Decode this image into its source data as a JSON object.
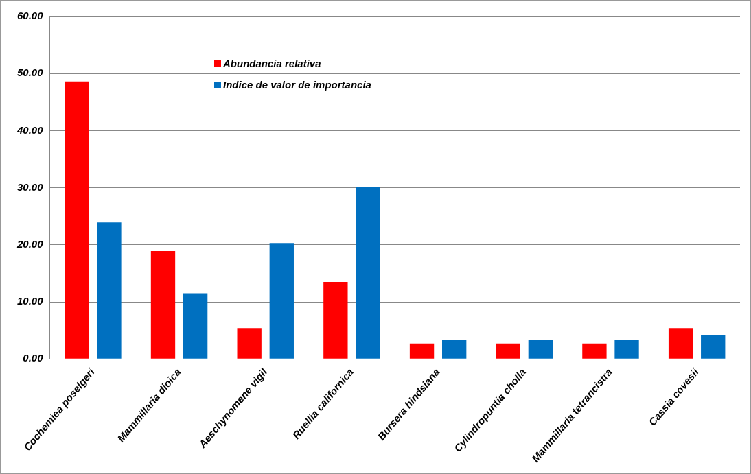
{
  "chart_data": {
    "type": "bar",
    "categories": [
      "Cochemiea poselgeri",
      "Mammillaria dioica",
      "Aeschynomene vigil",
      "Ruellia californica",
      "Bursera hindsiana",
      "Cylindropuntia cholla",
      "Mammillaria tetrancistra",
      "Cassia covesii"
    ],
    "series": [
      {
        "name": "Abundancia relativa",
        "color": "#ff0000",
        "values": [
          48.6,
          18.9,
          5.4,
          13.5,
          2.7,
          2.7,
          2.7,
          5.4
        ]
      },
      {
        "name": "Indice de valor de importancia",
        "color": "#0070c0",
        "values": [
          23.9,
          11.5,
          20.3,
          30.1,
          3.3,
          3.3,
          3.3,
          4.1
        ]
      }
    ],
    "ylim": [
      0,
      60
    ],
    "yticks": [
      {
        "value": 0,
        "label": "0.00"
      },
      {
        "value": 10,
        "label": "10.00"
      },
      {
        "value": 20,
        "label": "20.00"
      },
      {
        "value": 30,
        "label": "30.00"
      },
      {
        "value": 40,
        "label": "40.00"
      },
      {
        "value": 50,
        "label": "50.00"
      },
      {
        "value": 60,
        "label": "60.00"
      }
    ],
    "grid": "y",
    "legend": "top left"
  }
}
